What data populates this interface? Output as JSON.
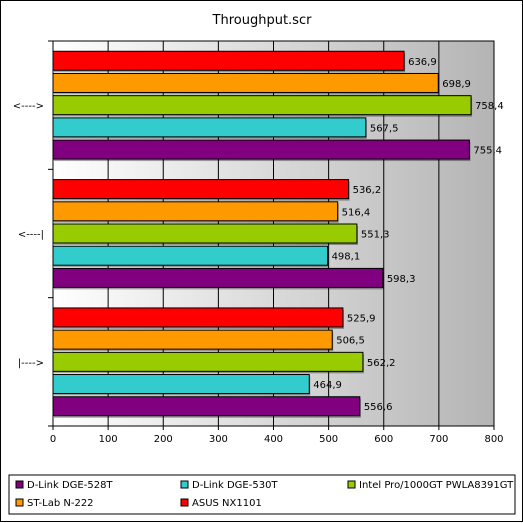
{
  "chart_data": {
    "type": "bar",
    "orientation": "horizontal",
    "title": "Throughput.scr",
    "xlabel": "",
    "ylabel": "",
    "xlim": [
      0,
      800
    ],
    "x_ticks": [
      "0",
      "100",
      "200",
      "300",
      "400",
      "500",
      "600",
      "700",
      "800"
    ],
    "grid": true,
    "legend_position": "bottom",
    "categories": [
      "<---->",
      "<----|",
      "|---->"
    ],
    "series": [
      {
        "name": "D-Link DGE-528T",
        "color": "#800080",
        "values": [
          755.4,
          598.3,
          556.6
        ],
        "labels": [
          "755,4",
          "598,3",
          "556,6"
        ]
      },
      {
        "name": "D-Link DGE-530T",
        "color": "#33CCCC",
        "values": [
          567.5,
          498.1,
          464.9
        ],
        "labels": [
          "567,5",
          "498,1",
          "464,9"
        ]
      },
      {
        "name": "Intel Pro/1000GT PWLA8391GT",
        "color": "#99CC00",
        "values": [
          758.4,
          551.3,
          562.2
        ],
        "labels": [
          "758,4",
          "551,3",
          "562,2"
        ]
      },
      {
        "name": "ST-Lab N-222",
        "color": "#FF9900",
        "values": [
          698.9,
          516.4,
          506.5
        ],
        "labels": [
          "698,9",
          "516,4",
          "506,5"
        ]
      },
      {
        "name": "ASUS NX1101",
        "color": "#FF0000",
        "values": [
          636.9,
          536.2,
          525.9
        ],
        "labels": [
          "636,9",
          "536,2",
          "525,9"
        ]
      }
    ],
    "stack_order_top_to_bottom": [
      4,
      3,
      2,
      1,
      0
    ]
  }
}
